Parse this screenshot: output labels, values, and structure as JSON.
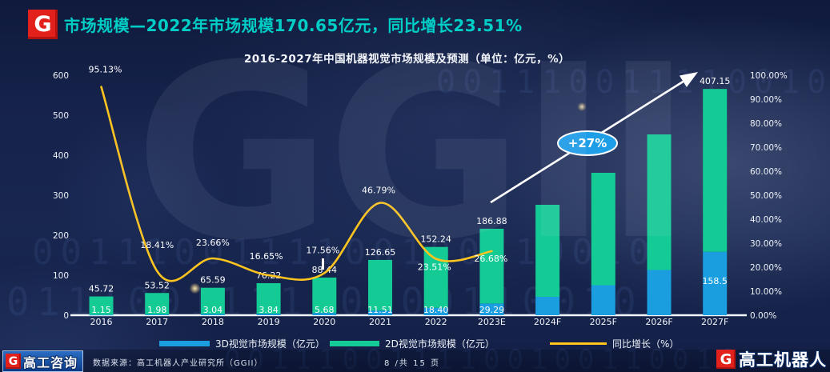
{
  "header": {
    "title": "市场规模—2022年市场规模170.65亿元，同比增长23.51%"
  },
  "logos": {
    "g_letter": "G"
  },
  "watermark": "GGII",
  "decorations": {
    "binary": "0011100111100100110010"
  },
  "chart_data": {
    "type": "bar+line combo (stacked bars, right-axis line)",
    "title": "2016-2027年中国机器视觉市场规模及预测（单位：亿元，%）",
    "categories": [
      "2016",
      "2017",
      "2018",
      "2019",
      "2020",
      "2021",
      "2022",
      "2023E",
      "2024F",
      "2025F",
      "2026F",
      "2027F"
    ],
    "series": [
      {
        "name": "3D视觉市场规模（亿元）",
        "type": "bar",
        "color": "#1A9EE0",
        "values": [
          1.15,
          1.98,
          3.04,
          3.84,
          5.68,
          11.51,
          18.4,
          29.29,
          46,
          75,
          113,
          158.5
        ],
        "labels": [
          "1.15",
          "1.98",
          "3.04",
          "3.84",
          "5.68",
          "11.51",
          "18.40",
          "29.29",
          "",
          "",
          "",
          "158.5"
        ]
      },
      {
        "name": "2D视觉市场规模（亿元）",
        "type": "bar",
        "color": "#14CB96",
        "values": [
          45.72,
          53.52,
          65.59,
          76.22,
          88.44,
          126.65,
          152.24,
          186.88,
          230,
          281,
          339,
          407.15
        ],
        "labels": [
          "45.72",
          "53.52",
          "65.59",
          "76.22",
          "88.44",
          "126.65",
          "152.24",
          "186.88",
          "",
          "",
          "",
          "407.15"
        ]
      },
      {
        "name": "同比增长（%）",
        "type": "line",
        "color": "#FFC41E",
        "values": [
          95.13,
          18.41,
          23.66,
          16.65,
          17.56,
          46.79,
          23.51,
          26.68,
          null,
          null,
          null,
          null
        ],
        "labels": [
          "95.13%",
          "18.41%",
          "23.66%",
          "16.65%",
          "17.56%",
          "46.79%",
          "23.51%",
          "26.68%"
        ]
      }
    ],
    "left_axis": {
      "ticks": [
        "0",
        "100",
        "200",
        "300",
        "400",
        "500",
        "600"
      ],
      "max": 600
    },
    "right_axis": {
      "ticks": [
        "0.00%",
        "10.00%",
        "20.00%",
        "30.00%",
        "40.00%",
        "50.00%",
        "60.00%",
        "70.00%",
        "80.00%",
        "90.00%",
        "100.00%"
      ],
      "max": 100
    },
    "annotation": {
      "label": "+27%",
      "color": "#1F9EE8"
    },
    "legend_position": "bottom",
    "grid": false
  },
  "footer": {
    "left_brand": "高工咨询",
    "source": "数据来源：高工机器人产业研究所（GGII）",
    "page": "8 /共 15 页",
    "right_brand": "高工机器人"
  }
}
